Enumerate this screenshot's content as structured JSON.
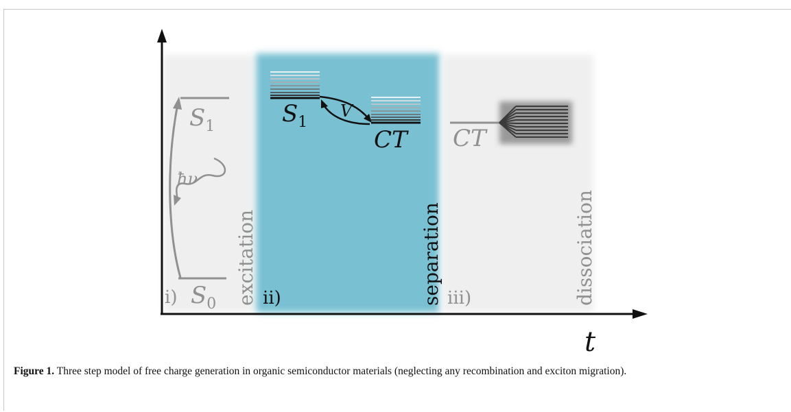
{
  "figure": {
    "axis_label": "t",
    "panels": [
      {
        "label": "i)",
        "step": "excitation"
      },
      {
        "label": "ii)",
        "step": "separation"
      },
      {
        "label": "iii)",
        "step": "dissociation"
      }
    ],
    "states": {
      "s1": "S",
      "s1_sub": "1",
      "s0": "S",
      "s0_sub": "0",
      "ct": "CT",
      "coupling": "V",
      "photon": "ħν"
    },
    "colors": {
      "panel_shade": "#efefef",
      "separation_panel": "#79c0d2",
      "excitation_gray": "#909090",
      "dark": "#1a1a1a"
    }
  },
  "caption": {
    "label": "Figure 1.",
    "text": " Three step model of free charge generation in organic semiconductor materials (neglecting any recombination and exciton migration)."
  }
}
